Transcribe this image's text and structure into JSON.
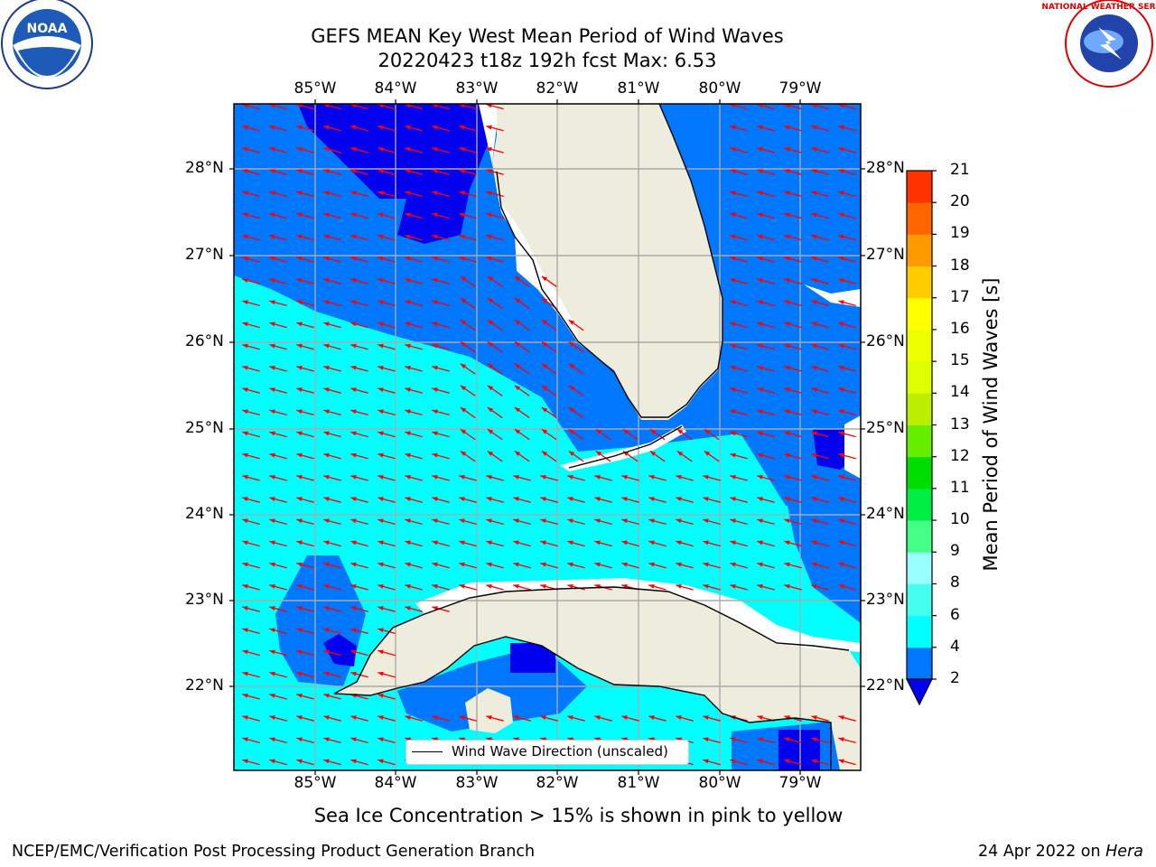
{
  "header": {
    "title_line1": "GEFS MEAN Key West Mean Period of Wind Waves",
    "title_line2": "20220423 t18z 192h fcst   Max: 6.53"
  },
  "logos": {
    "noaa_text": "NOAA",
    "nws_text": "NATIONAL WEATHER SERVICE"
  },
  "map": {
    "lon_labels": [
      "85°W",
      "84°W",
      "83°W",
      "82°W",
      "81°W",
      "80°W",
      "79°W"
    ],
    "lat_labels": [
      "28°N",
      "27°N",
      "26°N",
      "25°N",
      "24°N",
      "23°N",
      "22°N"
    ],
    "colors": {
      "land": "#eeecdc",
      "ocean_2_4": "#0077ff",
      "ocean_4_6": "#00ffff",
      "ocean_below_2": "#0000ee",
      "arrow": "#ff0000",
      "grid": "#aaaaaa"
    }
  },
  "colorbar": {
    "label": "Mean Period of Wind Waves [s]",
    "ticks": [
      "2",
      "4",
      "6",
      "8",
      "9",
      "10",
      "11",
      "12",
      "13",
      "14",
      "15",
      "16",
      "17",
      "18",
      "19",
      "20",
      "21"
    ],
    "segment_colors": [
      "#0077ff",
      "#00ffff",
      "#44ffee",
      "#99ffff",
      "#44ff88",
      "#00ee44",
      "#00dd00",
      "#66ee00",
      "#bbee00",
      "#ddff00",
      "#eeff00",
      "#ffff00",
      "#ffcc00",
      "#ff9900",
      "#ff6600",
      "#ff3300",
      "#ff0000"
    ],
    "extend_color": "#0000ee"
  },
  "legend": {
    "label": "Wind Wave Direction (unscaled)"
  },
  "note": "Sea Ice Concentration > 15% is shown in pink to yellow",
  "footer": {
    "left": "NCEP/EMC/Verification Post Processing Product Generation Branch",
    "right_date": "24 Apr 2022 on ",
    "right_machine": "Hera"
  }
}
